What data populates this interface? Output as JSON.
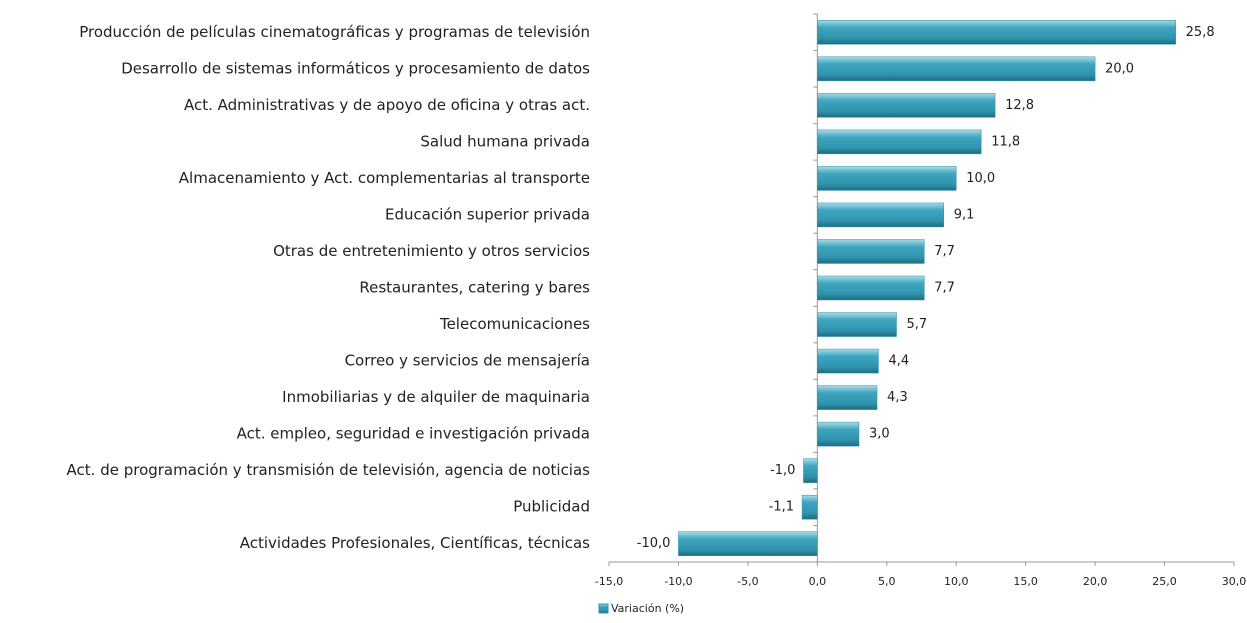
{
  "chart_data": {
    "type": "bar",
    "orientation": "horizontal",
    "categories": [
      "Producción de películas cinematográficas y programas de televisión",
      "Desarrollo de sistemas informáticos y procesamiento de datos",
      "Act. Administrativas y de apoyo de oficina y otras act.",
      "Salud humana privada",
      "Almacenamiento y Act. complementarias al transporte",
      "Educación superior privada",
      "Otras de entretenimiento y otros servicios",
      "Restaurantes, catering y bares",
      "Telecomunicaciones",
      "Correo y servicios de mensajería",
      "Inmobiliarias y de alquiler de maquinaria",
      "Act. empleo, seguridad e investigación privada",
      "Act. de programación y transmisión de televisión, agencia de noticias",
      "Publicidad",
      "Actividades Profesionales, Científicas, técnicas"
    ],
    "series": [
      {
        "name": "Variación (%)",
        "color": "#2f93ad",
        "values": [
          25.8,
          20.0,
          12.8,
          11.8,
          10.0,
          9.1,
          7.7,
          7.7,
          5.7,
          4.4,
          4.3,
          3.0,
          -1.0,
          -1.1,
          -10.0
        ],
        "value_labels": [
          "25,8",
          "20,0",
          "12,8",
          "11,8",
          "10,0",
          "9,1",
          "7,7",
          "7,7",
          "5,7",
          "4,4",
          "4,3",
          "3,0",
          "-1,0",
          "-1,1",
          "-10,0"
        ]
      }
    ],
    "xlim": [
      -15,
      30
    ],
    "xticks": [
      {
        "value": -15,
        "label": "-15,0"
      },
      {
        "value": -10,
        "label": "-10,0"
      },
      {
        "value": -5,
        "label": "-5,0"
      },
      {
        "value": 0,
        "label": "0,0"
      },
      {
        "value": 5,
        "label": "5,0"
      },
      {
        "value": 10,
        "label": "10,0"
      },
      {
        "value": 15,
        "label": "15,0"
      },
      {
        "value": 20,
        "label": "20,0"
      },
      {
        "value": 25,
        "label": "25,0"
      },
      {
        "value": 30,
        "label": "30,0"
      }
    ],
    "grid": false,
    "legend": "bottom"
  }
}
